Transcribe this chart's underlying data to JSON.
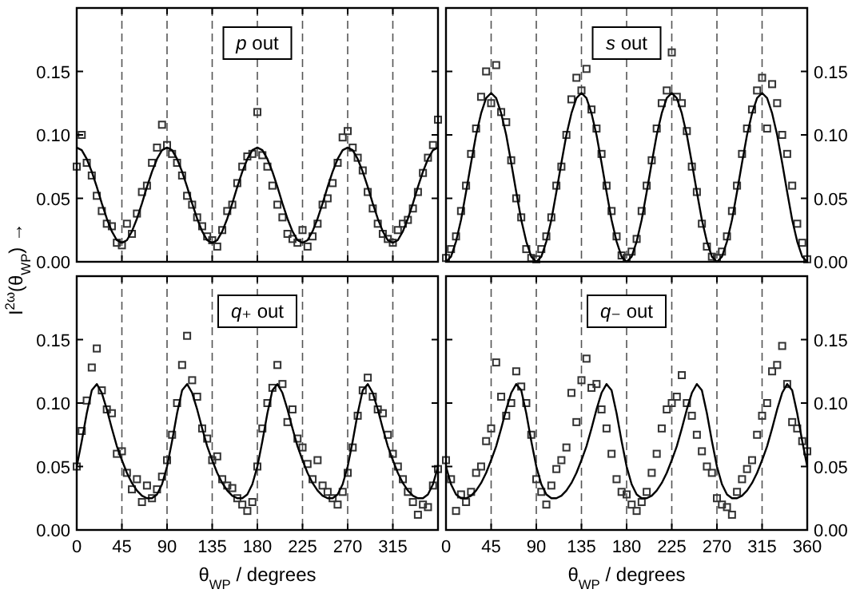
{
  "chart_data": [
    {
      "type": "scatter",
      "title": "p out",
      "ylabel": "I$^{2ω}$(θ$_{WP}$) →",
      "tick_labels": "y",
      "xlim": [
        0,
        360
      ],
      "ylim": [
        0,
        0.2
      ],
      "xticks": [
        0,
        45,
        90,
        135,
        180,
        225,
        270,
        315,
        {
          "value": 360,
          "label": null
        }
      ],
      "yticks": [
        {
          "value": 0,
          "label": "0.00"
        },
        {
          "value": 0.05,
          "label": "0.05"
        },
        {
          "value": 0.1,
          "label": "0.10"
        },
        {
          "value": 0.15,
          "label": "0.15"
        }
      ],
      "x": [
        0,
        5,
        10,
        15,
        20,
        25,
        30,
        35,
        40,
        45,
        50,
        55,
        60,
        65,
        70,
        75,
        80,
        85,
        90,
        95,
        100,
        105,
        110,
        115,
        120,
        125,
        130,
        135,
        140,
        145,
        150,
        155,
        160,
        165,
        170,
        175,
        180,
        185,
        190,
        195,
        200,
        205,
        210,
        215,
        220,
        225,
        230,
        235,
        240,
        245,
        250,
        255,
        260,
        265,
        270,
        275,
        280,
        285,
        290,
        295,
        300,
        305,
        310,
        315,
        320,
        325,
        330,
        335,
        340,
        345,
        350,
        355,
        360
      ],
      "ref_lines": [
        {
          "axis": "x",
          "value": 45,
          "line_style": "dashed",
          "color": "#555555"
        },
        {
          "axis": "x",
          "value": 90,
          "line_style": "dashed",
          "color": "#555555"
        },
        {
          "axis": "x",
          "value": 135,
          "line_style": "dashed",
          "color": "#555555"
        },
        {
          "axis": "x",
          "value": 180,
          "line_style": "dashed",
          "color": "#555555"
        },
        {
          "axis": "x",
          "value": 225,
          "line_style": "dashed",
          "color": "#555555"
        },
        {
          "axis": "x",
          "value": 270,
          "line_style": "dashed",
          "color": "#555555"
        },
        {
          "axis": "x",
          "value": 315,
          "line_style": "dashed",
          "color": "#555555"
        }
      ],
      "series": [
        {
          "marker": "square",
          "color": "#333333",
          "values": [
            0.075,
            0.1,
            0.078,
            0.068,
            0.052,
            0.04,
            0.03,
            0.028,
            0.015,
            0.013,
            0.03,
            0.022,
            0.038,
            0.055,
            0.06,
            0.078,
            0.09,
            0.108,
            0.092,
            0.085,
            0.078,
            0.068,
            0.052,
            0.045,
            0.035,
            0.028,
            0.02,
            0.017,
            0.012,
            0.025,
            0.04,
            0.045,
            0.062,
            0.075,
            0.083,
            0.085,
            0.118,
            0.084,
            0.075,
            0.06,
            0.045,
            0.035,
            0.022,
            0.018,
            0.015,
            0.025,
            0.012,
            0.02,
            0.03,
            0.045,
            0.05,
            0.062,
            0.078,
            0.098,
            0.103,
            0.09,
            0.082,
            0.072,
            0.055,
            0.042,
            0.03,
            0.022,
            0.018,
            0.015,
            0.025,
            0.03,
            0.033,
            0.042,
            0.055,
            0.07,
            0.082,
            0.092,
            0.112
          ]
        },
        {
          "type": "line",
          "line_style": "solid",
          "color": "#000000",
          "values": [
            0.09,
            0.088,
            0.081,
            0.071,
            0.059,
            0.046,
            0.034,
            0.024,
            0.017,
            0.015,
            0.017,
            0.024,
            0.034,
            0.046,
            0.059,
            0.071,
            0.081,
            0.088,
            0.09,
            0.088,
            0.081,
            0.071,
            0.059,
            0.046,
            0.034,
            0.024,
            0.017,
            0.015,
            0.017,
            0.024,
            0.034,
            0.046,
            0.059,
            0.071,
            0.081,
            0.088,
            0.09,
            0.088,
            0.081,
            0.071,
            0.059,
            0.046,
            0.034,
            0.024,
            0.017,
            0.015,
            0.017,
            0.024,
            0.034,
            0.046,
            0.059,
            0.071,
            0.081,
            0.088,
            0.09,
            0.088,
            0.081,
            0.071,
            0.059,
            0.046,
            0.034,
            0.024,
            0.017,
            0.015,
            0.017,
            0.024,
            0.034,
            0.046,
            0.059,
            0.071,
            0.081,
            0.088,
            0.09
          ]
        }
      ]
    },
    {
      "type": "scatter",
      "title": "s out",
      "tick_labels": "y",
      "xlim": [
        0,
        360
      ],
      "ylim": [
        0,
        0.2
      ],
      "yticks": [
        {
          "value": 0,
          "label": "0.00"
        },
        {
          "value": 0.05,
          "label": "0.05"
        },
        {
          "value": 0.1,
          "label": "0.10"
        },
        {
          "value": 0.15,
          "label": "0.15"
        }
      ],
      "x": [
        0,
        5,
        10,
        15,
        20,
        25,
        30,
        35,
        40,
        45,
        50,
        55,
        60,
        65,
        70,
        75,
        80,
        85,
        90,
        95,
        100,
        105,
        110,
        115,
        120,
        125,
        130,
        135,
        140,
        145,
        150,
        155,
        160,
        165,
        170,
        175,
        180,
        185,
        190,
        195,
        200,
        205,
        210,
        215,
        220,
        225,
        230,
        235,
        240,
        245,
        250,
        255,
        260,
        265,
        270,
        275,
        280,
        285,
        290,
        295,
        300,
        305,
        310,
        315,
        320,
        325,
        330,
        335,
        340,
        345,
        350,
        355,
        360
      ],
      "ref_lines": [
        {
          "axis": "x",
          "value": 45,
          "line_style": "dashed",
          "color": "#555555"
        },
        {
          "axis": "x",
          "value": 90,
          "line_style": "dashed",
          "color": "#555555"
        },
        {
          "axis": "x",
          "value": 135,
          "line_style": "dashed",
          "color": "#555555"
        },
        {
          "axis": "x",
          "value": 180,
          "line_style": "dashed",
          "color": "#555555"
        },
        {
          "axis": "x",
          "value": 225,
          "line_style": "dashed",
          "color": "#555555"
        },
        {
          "axis": "x",
          "value": 270,
          "line_style": "dashed",
          "color": "#555555"
        },
        {
          "axis": "x",
          "value": 315,
          "line_style": "dashed",
          "color": "#555555"
        }
      ],
      "series": [
        {
          "marker": "square",
          "color": "#333333",
          "values": [
            0.003,
            0.01,
            0.02,
            0.04,
            0.06,
            0.085,
            0.105,
            0.13,
            0.15,
            0.125,
            0.155,
            0.118,
            0.11,
            0.08,
            0.05,
            0.035,
            0.01,
            0.003,
            0.002,
            0.01,
            0.02,
            0.035,
            0.06,
            0.075,
            0.1,
            0.128,
            0.145,
            0.135,
            0.152,
            0.12,
            0.105,
            0.085,
            0.06,
            0.04,
            0.02,
            0.005,
            0.003,
            0.008,
            0.018,
            0.04,
            0.06,
            0.08,
            0.105,
            0.125,
            0.135,
            0.165,
            0.13,
            0.125,
            0.103,
            0.075,
            0.055,
            0.03,
            0.012,
            0.004,
            0.003,
            0.008,
            0.02,
            0.04,
            0.06,
            0.085,
            0.105,
            0.12,
            0.135,
            0.145,
            0.105,
            0.14,
            0.125,
            0.1,
            0.085,
            0.06,
            0.03,
            0.015,
            0.002
          ]
        },
        {
          "type": "line",
          "line_style": "solid",
          "color": "#000000",
          "values": [
            0,
            0.004,
            0.016,
            0.033,
            0.055,
            0.078,
            0.1,
            0.117,
            0.129,
            0.133,
            0.129,
            0.117,
            0.1,
            0.078,
            0.055,
            0.033,
            0.016,
            0.004,
            0,
            0.004,
            0.016,
            0.033,
            0.055,
            0.078,
            0.1,
            0.117,
            0.129,
            0.133,
            0.129,
            0.117,
            0.1,
            0.078,
            0.055,
            0.033,
            0.016,
            0.004,
            0,
            0.004,
            0.016,
            0.033,
            0.055,
            0.078,
            0.1,
            0.117,
            0.129,
            0.133,
            0.129,
            0.117,
            0.1,
            0.078,
            0.055,
            0.033,
            0.016,
            0.004,
            0,
            0.004,
            0.016,
            0.033,
            0.055,
            0.078,
            0.1,
            0.117,
            0.129,
            0.133,
            0.129,
            0.117,
            0.1,
            0.078,
            0.055,
            0.033,
            0.016,
            0.004,
            0
          ]
        }
      ]
    },
    {
      "type": "scatter",
      "title": "q₊ out",
      "xlabel": "θ$_{WP}$ / degrees",
      "xlim": [
        0,
        360
      ],
      "ylim": [
        0,
        0.2
      ],
      "xticks": [
        0,
        45,
        90,
        135,
        180,
        225,
        270,
        315,
        {
          "value": 360,
          "label": null
        }
      ],
      "yticks": [
        {
          "value": 0,
          "label": "0.00"
        },
        {
          "value": 0.05,
          "label": "0.05"
        },
        {
          "value": 0.1,
          "label": "0.10"
        },
        {
          "value": 0.15,
          "label": "0.15"
        }
      ],
      "x": [
        0,
        5,
        10,
        15,
        20,
        25,
        30,
        35,
        40,
        45,
        50,
        55,
        60,
        65,
        70,
        75,
        80,
        85,
        90,
        95,
        100,
        105,
        110,
        115,
        120,
        125,
        130,
        135,
        140,
        145,
        150,
        155,
        160,
        165,
        170,
        175,
        180,
        185,
        190,
        195,
        200,
        205,
        210,
        215,
        220,
        225,
        230,
        235,
        240,
        245,
        250,
        255,
        260,
        265,
        270,
        275,
        280,
        285,
        290,
        295,
        300,
        305,
        310,
        315,
        320,
        325,
        330,
        335,
        340,
        345,
        350,
        355,
        360
      ],
      "ref_lines": [
        {
          "axis": "x",
          "value": 45,
          "line_style": "dashed",
          "color": "#555555"
        },
        {
          "axis": "x",
          "value": 90,
          "line_style": "dashed",
          "color": "#555555"
        },
        {
          "axis": "x",
          "value": 135,
          "line_style": "dashed",
          "color": "#555555"
        },
        {
          "axis": "x",
          "value": 180,
          "line_style": "dashed",
          "color": "#555555"
        },
        {
          "axis": "x",
          "value": 225,
          "line_style": "dashed",
          "color": "#555555"
        },
        {
          "axis": "x",
          "value": 270,
          "line_style": "dashed",
          "color": "#555555"
        },
        {
          "axis": "x",
          "value": 315,
          "line_style": "dashed",
          "color": "#555555"
        }
      ],
      "series": [
        {
          "marker": "square",
          "color": "#333333",
          "values": [
            0.05,
            0.078,
            0.102,
            0.128,
            0.143,
            0.11,
            0.095,
            0.092,
            0.06,
            0.062,
            0.045,
            0.032,
            0.04,
            0.022,
            0.035,
            0.025,
            0.032,
            0.042,
            0.055,
            0.075,
            0.1,
            0.13,
            0.153,
            0.118,
            0.105,
            0.08,
            0.072,
            0.055,
            0.058,
            0.04,
            0.035,
            0.033,
            0.025,
            0.02,
            0.015,
            0.022,
            0.05,
            0.08,
            0.1,
            0.112,
            0.13,
            0.115,
            0.085,
            0.095,
            0.072,
            0.065,
            0.052,
            0.04,
            0.055,
            0.035,
            0.03,
            0.025,
            0.02,
            0.03,
            0.045,
            0.065,
            0.09,
            0.11,
            0.12,
            0.105,
            0.095,
            0.092,
            0.075,
            0.06,
            0.05,
            0.04,
            0.03,
            0.022,
            0.012,
            0.02,
            0.018,
            0.035,
            0.048
          ]
        },
        {
          "type": "line",
          "line_style": "solid",
          "color": "#000000",
          "values": [
            0.05,
            0.07,
            0.092,
            0.11,
            0.115,
            0.108,
            0.095,
            0.08,
            0.066,
            0.055,
            0.045,
            0.037,
            0.031,
            0.027,
            0.025,
            0.025,
            0.028,
            0.036,
            0.05,
            0.07,
            0.092,
            0.11,
            0.115,
            0.108,
            0.095,
            0.08,
            0.066,
            0.055,
            0.045,
            0.037,
            0.031,
            0.027,
            0.025,
            0.025,
            0.028,
            0.036,
            0.05,
            0.07,
            0.092,
            0.11,
            0.115,
            0.108,
            0.095,
            0.08,
            0.066,
            0.055,
            0.045,
            0.037,
            0.031,
            0.027,
            0.025,
            0.025,
            0.028,
            0.036,
            0.05,
            0.07,
            0.092,
            0.11,
            0.115,
            0.108,
            0.095,
            0.08,
            0.066,
            0.055,
            0.045,
            0.037,
            0.031,
            0.027,
            0.025,
            0.025,
            0.028,
            0.036,
            0.05
          ]
        }
      ]
    },
    {
      "type": "scatter",
      "title": "q₋ out",
      "xlabel": "θ$_{WP}$ / degrees",
      "xlim": [
        0,
        360
      ],
      "ylim": [
        0,
        0.2
      ],
      "xticks": [
        0,
        45,
        90,
        135,
        180,
        225,
        270,
        315,
        360
      ],
      "yticks": [
        {
          "value": 0,
          "label": "0.00"
        },
        {
          "value": 0.05,
          "label": "0.05"
        },
        {
          "value": 0.1,
          "label": "0.10"
        },
        {
          "value": 0.15,
          "label": "0.15"
        }
      ],
      "x": [
        0,
        5,
        10,
        15,
        20,
        25,
        30,
        35,
        40,
        45,
        50,
        55,
        60,
        65,
        70,
        75,
        80,
        85,
        90,
        95,
        100,
        105,
        110,
        115,
        120,
        125,
        130,
        135,
        140,
        145,
        150,
        155,
        160,
        165,
        170,
        175,
        180,
        185,
        190,
        195,
        200,
        205,
        210,
        215,
        220,
        225,
        230,
        235,
        240,
        245,
        250,
        255,
        260,
        265,
        270,
        275,
        280,
        285,
        290,
        295,
        300,
        305,
        310,
        315,
        320,
        325,
        330,
        335,
        340,
        345,
        350,
        355,
        360
      ],
      "ref_lines": [
        {
          "axis": "x",
          "value": 45,
          "line_style": "dashed",
          "color": "#555555"
        },
        {
          "axis": "x",
          "value": 90,
          "line_style": "dashed",
          "color": "#555555"
        },
        {
          "axis": "x",
          "value": 135,
          "line_style": "dashed",
          "color": "#555555"
        },
        {
          "axis": "x",
          "value": 180,
          "line_style": "dashed",
          "color": "#555555"
        },
        {
          "axis": "x",
          "value": 225,
          "line_style": "dashed",
          "color": "#555555"
        },
        {
          "axis": "x",
          "value": 270,
          "line_style": "dashed",
          "color": "#555555"
        },
        {
          "axis": "x",
          "value": 315,
          "line_style": "dashed",
          "color": "#555555"
        }
      ],
      "series": [
        {
          "marker": "square",
          "color": "#333333",
          "values": [
            0.055,
            0.04,
            0.015,
            0.028,
            0.022,
            0.03,
            0.045,
            0.05,
            0.07,
            0.08,
            0.132,
            0.105,
            0.09,
            0.1,
            0.125,
            0.113,
            0.1,
            0.075,
            0.04,
            0.03,
            0.02,
            0.035,
            0.048,
            0.055,
            0.065,
            0.108,
            0.085,
            0.118,
            0.135,
            0.112,
            0.115,
            0.095,
            0.08,
            0.06,
            0.04,
            0.03,
            0.028,
            0.02,
            0.015,
            0.022,
            0.03,
            0.045,
            0.06,
            0.08,
            0.095,
            0.1,
            0.105,
            0.122,
            0.1,
            0.09,
            0.075,
            0.062,
            0.05,
            0.045,
            0.025,
            0.02,
            0.018,
            0.012,
            0.03,
            0.04,
            0.048,
            0.055,
            0.075,
            0.09,
            0.1,
            0.125,
            0.13,
            0.145,
            0.115,
            0.085,
            0.08,
            0.07,
            0.062
          ]
        },
        {
          "type": "line",
          "line_style": "solid",
          "color": "#000000",
          "values": [
            0.05,
            0.036,
            0.028,
            0.025,
            0.025,
            0.027,
            0.031,
            0.037,
            0.045,
            0.055,
            0.066,
            0.08,
            0.095,
            0.108,
            0.115,
            0.11,
            0.092,
            0.07,
            0.05,
            0.036,
            0.028,
            0.025,
            0.025,
            0.027,
            0.031,
            0.037,
            0.045,
            0.055,
            0.066,
            0.08,
            0.095,
            0.108,
            0.115,
            0.11,
            0.092,
            0.07,
            0.05,
            0.036,
            0.028,
            0.025,
            0.025,
            0.027,
            0.031,
            0.037,
            0.045,
            0.055,
            0.066,
            0.08,
            0.095,
            0.108,
            0.115,
            0.11,
            0.092,
            0.07,
            0.05,
            0.036,
            0.028,
            0.025,
            0.025,
            0.027,
            0.031,
            0.037,
            0.045,
            0.055,
            0.066,
            0.08,
            0.095,
            0.108,
            0.115,
            0.11,
            0.092,
            0.07,
            0.05
          ]
        }
      ]
    }
  ]
}
